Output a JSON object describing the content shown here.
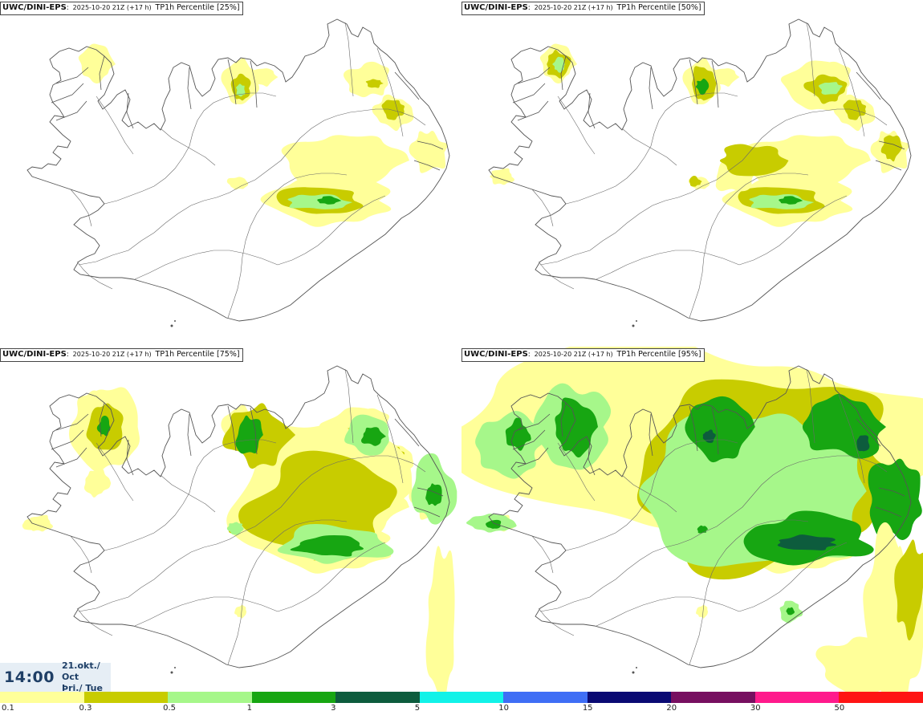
{
  "panels": [
    {
      "model": "UWC/DINI-EPS",
      "run": "2025-10-20 21Z (+17 h)",
      "param": "TP1h Percentile [25%]",
      "percentile": 25
    },
    {
      "model": "UWC/DINI-EPS",
      "run": "2025-10-20 21Z (+17 h)",
      "param": "TP1h Percentile [50%]",
      "percentile": 50
    },
    {
      "model": "UWC/DINI-EPS",
      "run": "2025-10-20 21Z (+17 h)",
      "param": "TP1h Percentile [75%]",
      "percentile": 75
    },
    {
      "model": "UWC/DINI-EPS",
      "run": "2025-10-20 21Z (+17 h)",
      "param": "TP1h Percentile [95%]",
      "percentile": 95
    }
  ],
  "time": {
    "clock": "14:00",
    "date_line": "21.okt./ Oct",
    "day_line": "Þri./ Tue"
  },
  "colorbar": {
    "labels": [
      "0.1",
      "0.3",
      "0.5",
      "1",
      "3",
      "5",
      "10",
      "15",
      "20",
      "30",
      "50"
    ],
    "colors": [
      "#ffff99",
      "#c8cc00",
      "#a6f78a",
      "#17a612",
      "#0d5c3d",
      "#12f2e8",
      "#3f6ef5",
      "#0a0a73",
      "#770f60",
      "#ff1a8c",
      "#ff1414"
    ]
  },
  "colors": {
    "land_outline": "#555555",
    "precip_levels": [
      "#ffff99",
      "#c8cc00",
      "#a6f78a",
      "#17a612",
      "#0d5c3d"
    ]
  }
}
